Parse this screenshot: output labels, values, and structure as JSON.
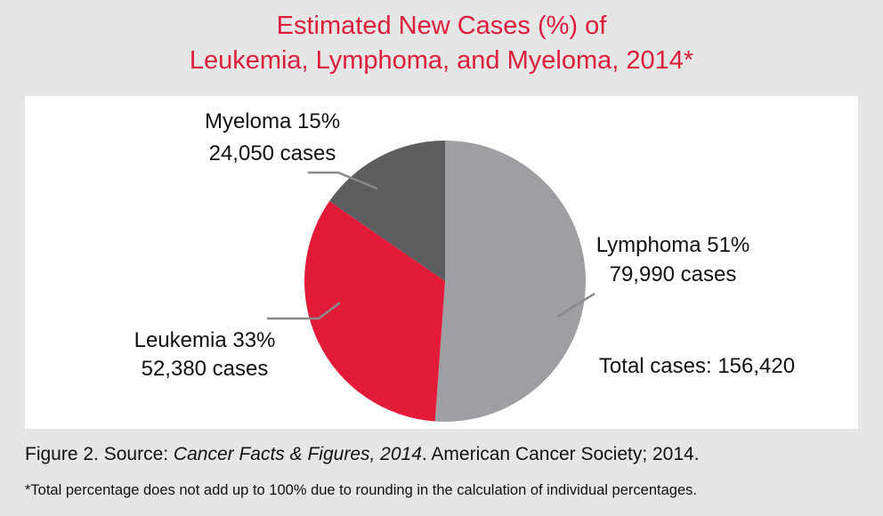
{
  "chart_data": {
    "type": "pie",
    "title": [
      "Estimated New Cases (%) of",
      "Leukemia, Lymphoma, and Myeloma, 2014*"
    ],
    "slices": [
      {
        "label": "Lymphoma 51%",
        "cases_text": "79,990 cases",
        "name": "Lymphoma",
        "percent": 51,
        "cases": 79990,
        "color": "#9e9fa2"
      },
      {
        "label": "Leukemia 33%",
        "cases_text": "52,380 cases",
        "name": "Leukemia",
        "percent": 33,
        "cases": 52380,
        "color": "#e41a39"
      },
      {
        "label": "Myeloma 15%",
        "cases_text": "24,050 cases",
        "name": "Myeloma",
        "percent": 15,
        "cases": 24050,
        "color": "#5d5e60"
      }
    ],
    "total_text": "Total cases: 156,420",
    "total": 156420
  },
  "source": {
    "prefix": "Figure 2. Source: ",
    "italic": "Cancer Facts & Figures, 2014",
    "suffix": ". American Cancer Society; 2014."
  },
  "footnote": "*Total percentage does not add up to 100% due to rounding in the calculation of individual percentages.",
  "colors": {
    "title": "#dc1e3c",
    "background": "#e6e6e6",
    "panel": "#ffffff",
    "leader": "#8a8a8a"
  }
}
